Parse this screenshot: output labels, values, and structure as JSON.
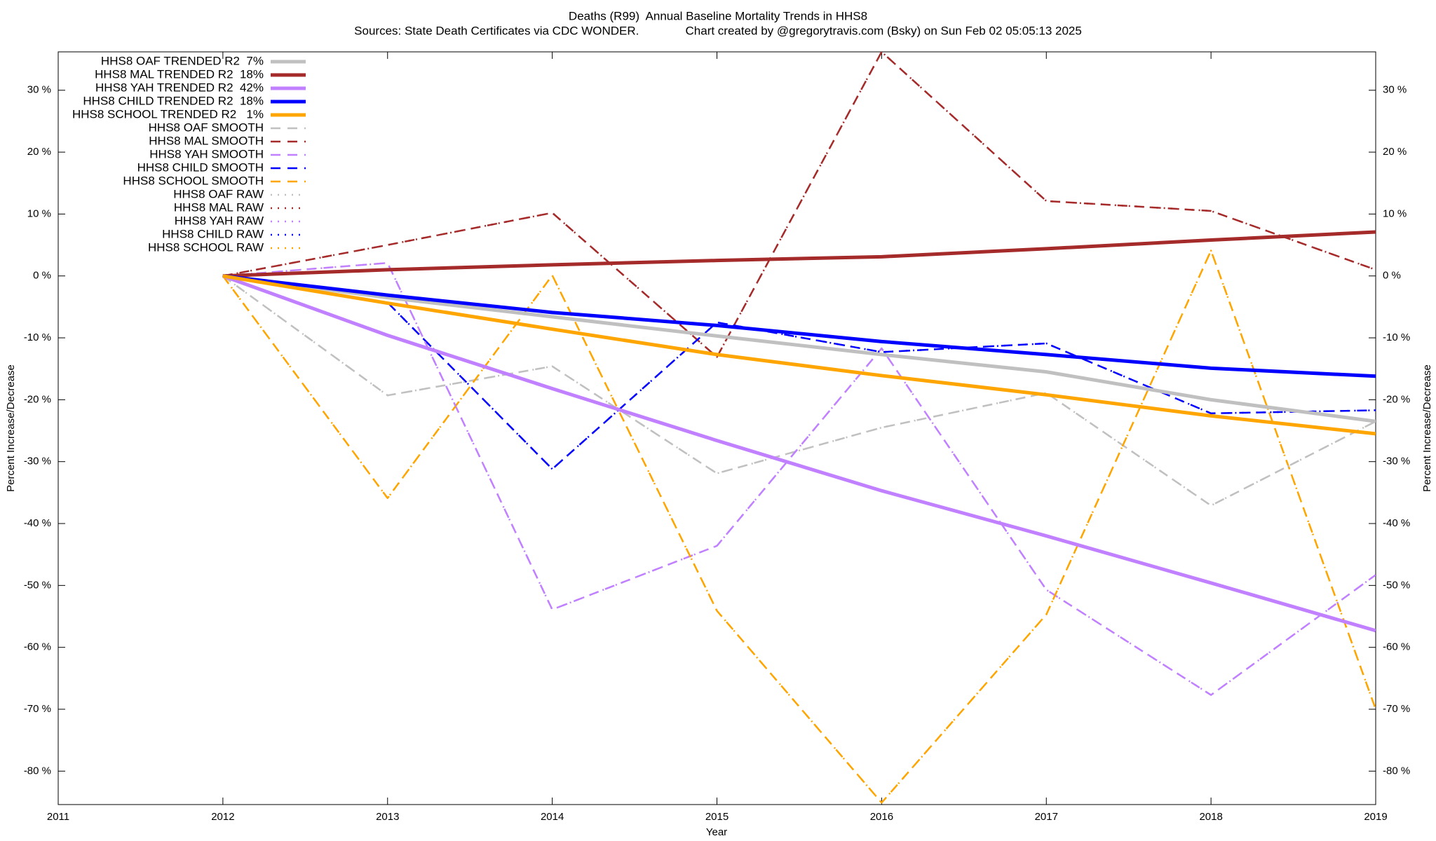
{
  "chart_data": {
    "type": "line",
    "title": "Deaths (R99)  Annual Baseline Mortality Trends in HHS8",
    "subtitle": "Sources: State Death Certificates via CDC WONDER.              Chart created by @gregorytravis.com (Bsky) on Sun Feb 02 05:05:13 2025",
    "xlabel": "Year",
    "ylabel": "Percent Increase/Decrease",
    "y2label": "Percent Increase/Decrease",
    "x": [
      2012,
      2013,
      2014,
      2015,
      2016,
      2017,
      2018,
      2019
    ],
    "xlim": [
      2011,
      2019
    ],
    "xticks": [
      2011,
      2012,
      2013,
      2014,
      2015,
      2016,
      2017,
      2018,
      2019
    ],
    "ylim": [
      -85.4,
      36.2
    ],
    "yticks": [
      {
        "value": 30,
        "label": "30 %"
      },
      {
        "value": 20,
        "label": "20 %"
      },
      {
        "value": 10,
        "label": "10 %"
      },
      {
        "value": 0,
        "label": "0 %"
      },
      {
        "value": -10,
        "label": "-10 %"
      },
      {
        "value": -20,
        "label": "-20 %"
      },
      {
        "value": -30,
        "label": "-30 %"
      },
      {
        "value": -40,
        "label": "-40 %"
      },
      {
        "value": -50,
        "label": "-50 %"
      },
      {
        "value": -60,
        "label": "-60 %"
      },
      {
        "value": -70,
        "label": "-70 %"
      },
      {
        "value": -80,
        "label": "-80 %"
      }
    ],
    "y2lim": [
      -85.4,
      36.2
    ],
    "y2ticks": [
      {
        "value": 30,
        "label": "30 %"
      },
      {
        "value": 20,
        "label": "20 %"
      },
      {
        "value": 10,
        "label": "10 %"
      },
      {
        "value": 0,
        "label": "0 %"
      },
      {
        "value": -10,
        "label": "-10 %"
      },
      {
        "value": -20,
        "label": "-20 %"
      },
      {
        "value": -30,
        "label": "-30 %"
      },
      {
        "value": -40,
        "label": "-40 %"
      },
      {
        "value": -50,
        "label": "-50 %"
      },
      {
        "value": -60,
        "label": "-60 %"
      },
      {
        "value": -70,
        "label": "-70 %"
      },
      {
        "value": -80,
        "label": "-80 %"
      }
    ],
    "legend": "top-left",
    "series": [
      {
        "name": "HHS8 OAF TRENDED R2  7%",
        "color": "#c0c0c0",
        "dash": "solid",
        "values": [
          0,
          -3.5,
          -6.6,
          -9.7,
          -12.7,
          -15.5,
          -20.0,
          -23.5
        ]
      },
      {
        "name": "HHS8 MAL TRENDED R2  18%",
        "color": "#a52a2a",
        "dash": "solid",
        "values": [
          0,
          1.0,
          1.8,
          2.5,
          3.1,
          4.4,
          5.8,
          7.1
        ]
      },
      {
        "name": "HHS8 YAH TRENDED R2  42%",
        "color": "#c080ff",
        "dash": "solid",
        "values": [
          0,
          -9.6,
          -18.2,
          -26.6,
          -34.7,
          -42.0,
          -49.6,
          -57.3
        ]
      },
      {
        "name": "HHS8 CHILD TRENDED R2  18%",
        "color": "#0000ff",
        "dash": "solid",
        "values": [
          0,
          -3.1,
          -5.9,
          -8.0,
          -10.6,
          -12.7,
          -14.9,
          -16.2
        ]
      },
      {
        "name": "HHS8 SCHOOL TRENDED R2   1%",
        "color": "#ffa500",
        "dash": "solid",
        "values": [
          0,
          -4.4,
          -8.6,
          -12.7,
          -16.1,
          -19.2,
          -22.6,
          -25.5
        ]
      },
      {
        "name": "HHS8 OAF SMOOTH",
        "color": "#c0c0c0",
        "dash": "dashed",
        "values": [
          0,
          -19.3,
          -14.6,
          -31.9,
          -24.5,
          -18.9,
          -37.1,
          -23.5
        ]
      },
      {
        "name": "HHS8 MAL SMOOTH",
        "color": "#a52a2a",
        "dash": "dashed",
        "values": [
          0,
          5.0,
          10.2,
          -13.1,
          36.2,
          12.1,
          10.5,
          1.0
        ]
      },
      {
        "name": "HHS8 YAH SMOOTH",
        "color": "#c080ff",
        "dash": "dashed",
        "values": [
          0,
          2.1,
          -53.9,
          -43.6,
          -11.7,
          -50.7,
          -67.7,
          -48.3
        ]
      },
      {
        "name": "HHS8 CHILD SMOOTH",
        "color": "#0000ff",
        "dash": "dashed",
        "values": [
          0,
          -4.3,
          -31.2,
          -7.5,
          -12.3,
          -10.9,
          -22.2,
          -21.7
        ]
      },
      {
        "name": "HHS8 SCHOOL SMOOTH",
        "color": "#ffa500",
        "dash": "dashed",
        "values": [
          0,
          -35.9,
          0.1,
          -54.1,
          -85.1,
          -54.7,
          4.1,
          -70.0
        ]
      },
      {
        "name": "HHS8 OAF RAW",
        "color": "#c0c0c0",
        "dash": "dotted",
        "values": [
          0,
          -19.3,
          -14.6,
          -31.9,
          -24.5,
          -18.9,
          -37.1,
          -23.5
        ]
      },
      {
        "name": "HHS8 MAL RAW",
        "color": "#a52a2a",
        "dash": "dotted",
        "values": [
          0,
          5.0,
          10.2,
          -13.1,
          36.2,
          12.1,
          10.5,
          1.0
        ]
      },
      {
        "name": "HHS8 YAH RAW",
        "color": "#c080ff",
        "dash": "dotted",
        "values": [
          0,
          2.1,
          -53.9,
          -43.6,
          -11.7,
          -50.7,
          -67.7,
          -48.3
        ]
      },
      {
        "name": "HHS8 CHILD RAW",
        "color": "#0000ff",
        "dash": "dotted",
        "values": [
          0,
          -4.3,
          -31.2,
          -7.5,
          -12.3,
          -10.9,
          -22.2,
          -21.7
        ]
      },
      {
        "name": "HHS8 SCHOOL RAW",
        "color": "#ffa500",
        "dash": "dotted",
        "values": [
          0,
          -35.9,
          0.1,
          -54.1,
          -85.1,
          -54.7,
          4.1,
          -70.0
        ]
      }
    ]
  }
}
